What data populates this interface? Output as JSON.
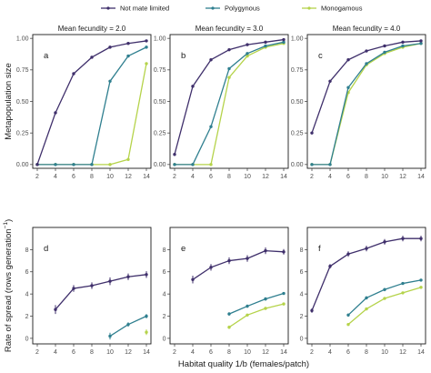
{
  "chart_data": {
    "type": "line",
    "xlabel": "Habitat quality 1/b (females/patch)",
    "xticks": [
      2,
      4,
      6,
      8,
      10,
      12,
      14
    ],
    "xlim": [
      1.5,
      14.5
    ],
    "legend": {
      "placement": "top",
      "entries": [
        {
          "name": "Not mate limited",
          "color": "#3f2f6b"
        },
        {
          "name": "Polygynous",
          "color": "#2f7f8f"
        },
        {
          "name": "Monogamous",
          "color": "#b5d34a"
        }
      ]
    },
    "columns": [
      {
        "strip": "Mean fecundity = 2.0"
      },
      {
        "strip": "Mean fecundity = 3.0"
      },
      {
        "strip": "Mean fecundity = 4.0"
      }
    ],
    "rows": [
      {
        "ylabel": "Metapopulation size",
        "ylim": [
          -0.03,
          1.03
        ],
        "yticks": [
          "0.00",
          "0.25",
          "0.50",
          "0.75",
          "1.00"
        ],
        "panels": [
          {
            "letter": "a",
            "series": [
              {
                "x": [
                  2,
                  4,
                  6,
                  8,
                  10,
                  12,
                  14
                ],
                "y": [
                  0.0,
                  0.41,
                  0.72,
                  0.85,
                  0.93,
                  0.96,
                  0.98
                ]
              },
              {
                "x": [
                  2,
                  4,
                  6,
                  8,
                  10,
                  12,
                  14
                ],
                "y": [
                  0.0,
                  0.0,
                  0.0,
                  0.0,
                  0.66,
                  0.86,
                  0.93
                ]
              },
              {
                "x": [
                  2,
                  4,
                  6,
                  8,
                  10,
                  12,
                  14
                ],
                "y": [
                  0.0,
                  0.0,
                  0.0,
                  0.0,
                  0.0,
                  0.04,
                  0.8
                ]
              }
            ]
          },
          {
            "letter": "b",
            "series": [
              {
                "x": [
                  2,
                  4,
                  6,
                  8,
                  10,
                  12,
                  14
                ],
                "y": [
                  0.08,
                  0.62,
                  0.83,
                  0.91,
                  0.95,
                  0.97,
                  0.99
                ]
              },
              {
                "x": [
                  2,
                  4,
                  6,
                  8,
                  10,
                  12,
                  14
                ],
                "y": [
                  0.0,
                  0.0,
                  0.3,
                  0.76,
                  0.88,
                  0.94,
                  0.97
                ]
              },
              {
                "x": [
                  2,
                  4,
                  6,
                  8,
                  10,
                  12,
                  14
                ],
                "y": [
                  0.0,
                  0.0,
                  0.0,
                  0.69,
                  0.86,
                  0.93,
                  0.96
                ]
              }
            ]
          },
          {
            "letter": "c",
            "series": [
              {
                "x": [
                  2,
                  4,
                  6,
                  8,
                  10,
                  12,
                  14
                ],
                "y": [
                  0.25,
                  0.66,
                  0.83,
                  0.9,
                  0.94,
                  0.97,
                  0.98
                ]
              },
              {
                "x": [
                  2,
                  4,
                  6,
                  8,
                  10,
                  12,
                  14
                ],
                "y": [
                  0.0,
                  0.0,
                  0.61,
                  0.8,
                  0.89,
                  0.94,
                  0.96
                ]
              },
              {
                "x": [
                  2,
                  4,
                  6,
                  8,
                  10,
                  12,
                  14
                ],
                "y": [
                  0.0,
                  0.0,
                  0.57,
                  0.79,
                  0.88,
                  0.93,
                  0.96
                ]
              }
            ]
          }
        ]
      },
      {
        "ylabel": "Rate of spread (rows generation",
        "ylabel_sup": "−1",
        "ylabel_end": ")",
        "ylim": [
          -0.5,
          10.0
        ],
        "yticks": [
          "0",
          "2",
          "4",
          "6",
          "8"
        ],
        "panels": [
          {
            "letter": "d",
            "series": [
              {
                "x": [
                  4,
                  6,
                  8,
                  10,
                  12,
                  14
                ],
                "y": [
                  2.6,
                  4.5,
                  4.75,
                  5.15,
                  5.55,
                  5.75
                ],
                "err": [
                  0.4,
                  0.3,
                  0.3,
                  0.35,
                  0.3,
                  0.3
                ]
              },
              {
                "x": [
                  10,
                  12,
                  14
                ],
                "y": [
                  0.2,
                  1.25,
                  2.0
                ],
                "err": [
                  0.3,
                  0.2,
                  0.2
                ]
              },
              {
                "x": [
                  14
                ],
                "y": [
                  0.55
                ],
                "err": [
                  0.25
                ]
              }
            ]
          },
          {
            "letter": "e",
            "series": [
              {
                "x": [
                  4,
                  6,
                  8,
                  10,
                  12,
                  14
                ],
                "y": [
                  5.3,
                  6.4,
                  7.0,
                  7.2,
                  7.9,
                  7.8
                ],
                "err": [
                  0.35,
                  0.3,
                  0.3,
                  0.3,
                  0.3,
                  0.25
                ]
              },
              {
                "x": [
                  8,
                  10,
                  12,
                  14
                ],
                "y": [
                  2.2,
                  2.9,
                  3.55,
                  4.05
                ],
                "err": [
                  0.15,
                  0.15,
                  0.15,
                  0.1
                ]
              },
              {
                "x": [
                  8,
                  10,
                  12,
                  14
                ],
                "y": [
                  1.0,
                  2.1,
                  2.7,
                  3.1
                ],
                "err": [
                  0.15,
                  0.1,
                  0.1,
                  0.1
                ]
              }
            ]
          },
          {
            "letter": "f",
            "series": [
              {
                "x": [
                  2,
                  4,
                  6,
                  8,
                  10,
                  12,
                  14
                ],
                "y": [
                  2.5,
                  6.5,
                  7.6,
                  8.1,
                  8.7,
                  9.0,
                  9.0
                ],
                "err": [
                  0.2,
                  0.2,
                  0.25,
                  0.25,
                  0.25,
                  0.25,
                  0.25
                ]
              },
              {
                "x": [
                  6,
                  8,
                  10,
                  12,
                  14
                ],
                "y": [
                  2.1,
                  3.65,
                  4.4,
                  4.95,
                  5.25
                ],
                "err": [
                  0.15,
                  0.15,
                  0.15,
                  0.1,
                  0.1
                ]
              },
              {
                "x": [
                  6,
                  8,
                  10,
                  12,
                  14
                ],
                "y": [
                  1.25,
                  2.65,
                  3.6,
                  4.1,
                  4.6
                ],
                "err": [
                  0.1,
                  0.1,
                  0.1,
                  0.1,
                  0.1
                ]
              }
            ]
          }
        ]
      }
    ]
  }
}
